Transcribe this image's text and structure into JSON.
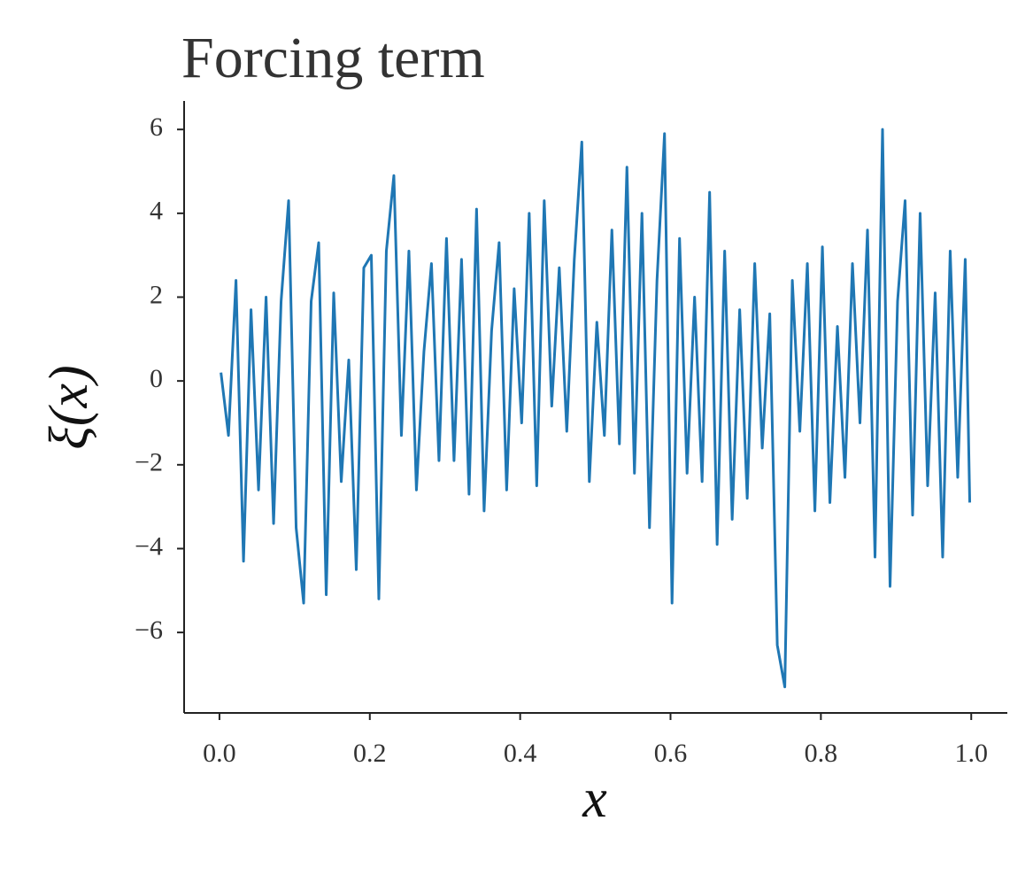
{
  "chart_data": {
    "type": "line",
    "title": "Forcing term",
    "xlabel": "x",
    "ylabel": "ξ(x)",
    "x": [
      0.002,
      0.012,
      0.022,
      0.032,
      0.042,
      0.052,
      0.062,
      0.072,
      0.082,
      0.092,
      0.102,
      0.112,
      0.122,
      0.132,
      0.142,
      0.152,
      0.162,
      0.172,
      0.182,
      0.192,
      0.202,
      0.212,
      0.222,
      0.232,
      0.242,
      0.252,
      0.262,
      0.272,
      0.282,
      0.292,
      0.302,
      0.312,
      0.322,
      0.332,
      0.342,
      0.352,
      0.362,
      0.372,
      0.382,
      0.392,
      0.402,
      0.412,
      0.422,
      0.432,
      0.442,
      0.452,
      0.462,
      0.472,
      0.482,
      0.492,
      0.502,
      0.512,
      0.522,
      0.532,
      0.542,
      0.552,
      0.562,
      0.572,
      0.582,
      0.592,
      0.602,
      0.612,
      0.622,
      0.632,
      0.642,
      0.652,
      0.662,
      0.672,
      0.682,
      0.692,
      0.702,
      0.712,
      0.722,
      0.732,
      0.742,
      0.752,
      0.762,
      0.772,
      0.782,
      0.792,
      0.802,
      0.812,
      0.822,
      0.832,
      0.842,
      0.852,
      0.862,
      0.872,
      0.882,
      0.892,
      0.902,
      0.912,
      0.922,
      0.932,
      0.942,
      0.952,
      0.962,
      0.972,
      0.982,
      0.992,
      0.998
    ],
    "series": [
      {
        "name": "ξ(x)",
        "color": "#1f77b4",
        "values": [
          0.2,
          -1.3,
          2.4,
          -4.3,
          1.7,
          -2.6,
          2.0,
          -3.4,
          1.9,
          4.3,
          -3.5,
          -5.3,
          1.9,
          3.3,
          -5.1,
          2.1,
          -2.4,
          0.5,
          -4.5,
          2.7,
          3.0,
          -5.2,
          3.1,
          4.9,
          -1.3,
          3.1,
          -2.6,
          0.7,
          2.8,
          -1.9,
          3.4,
          -1.9,
          2.9,
          -2.7,
          4.1,
          -3.1,
          1.2,
          3.3,
          -2.6,
          2.2,
          -1.0,
          4.0,
          -2.5,
          4.3,
          -0.6,
          2.7,
          -1.2,
          2.9,
          5.7,
          -2.4,
          1.4,
          -1.3,
          3.6,
          -1.5,
          5.1,
          -2.2,
          4.0,
          -3.5,
          2.4,
          5.9,
          -5.3,
          3.4,
          -2.2,
          2.0,
          -2.4,
          4.5,
          -3.9,
          3.1,
          -3.3,
          1.7,
          -2.8,
          2.8,
          -1.6,
          1.6,
          -6.3,
          -7.3,
          2.4,
          -1.2,
          2.8,
          -3.1,
          3.2,
          -2.9,
          1.3,
          -2.3,
          2.8,
          -1.0,
          3.6,
          -4.2,
          6.0,
          -4.9,
          1.9,
          4.3,
          -3.2,
          4.0,
          -2.5,
          2.1,
          -4.2,
          3.1,
          -2.3,
          2.9,
          -2.9
        ]
      }
    ],
    "xlim": [
      -0.047,
      1.048
    ],
    "ylim": [
      -7.92,
      6.68
    ],
    "xticks": [
      {
        "value": 0,
        "label": "0.0"
      },
      0.2,
      0.4,
      0.6,
      0.8,
      {
        "value": 1,
        "label": "1.0"
      }
    ],
    "yticks": [
      {
        "value": -6,
        "label": "−6"
      },
      {
        "value": -4,
        "label": "−4"
      },
      {
        "value": -2,
        "label": "−2"
      },
      0,
      2,
      4,
      6
    ]
  }
}
